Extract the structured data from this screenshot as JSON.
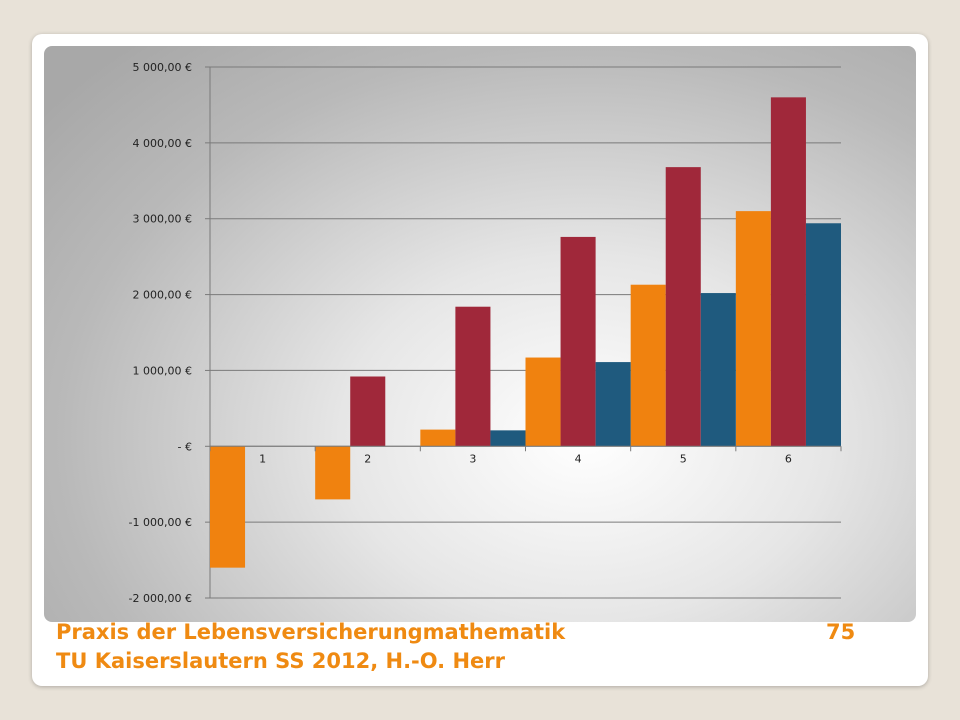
{
  "footer": {
    "line1": "Praxis der Lebensversicherungmathematik",
    "page_number": "75",
    "line2": "TU Kaiserslautern SS 2012, H.-O. Herr"
  },
  "colors": {
    "series1": "#f0820f",
    "series2": "#a0283a",
    "series3": "#1f5a7e",
    "gridline": "#7a7a7a",
    "footer_text": "#ef8a12"
  },
  "chart_data": {
    "type": "bar",
    "title": "",
    "xlabel": "",
    "ylabel": "",
    "categories": [
      "1",
      "2",
      "3",
      "4",
      "5",
      "6"
    ],
    "series": [
      {
        "values": [
          -1600,
          -700,
          220,
          1170,
          2130,
          3100
        ]
      },
      {
        "values": [
          0,
          920,
          1840,
          2760,
          3680,
          4600
        ]
      },
      {
        "values": [
          0,
          0,
          210,
          1110,
          2020,
          2940
        ]
      }
    ],
    "ylim": [
      -2000,
      5000
    ],
    "yticks": [
      5000,
      4000,
      3000,
      2000,
      1000,
      0,
      -1000,
      -2000
    ],
    "ytick_labels": [
      "5 000,00 €",
      "4 000,00 €",
      "3 000,00 €",
      "2 000,00 €",
      "1 000,00 €",
      "-   €",
      "-1 000,00 €",
      "-2 000,00 €"
    ],
    "grid": true,
    "legend": "none"
  }
}
